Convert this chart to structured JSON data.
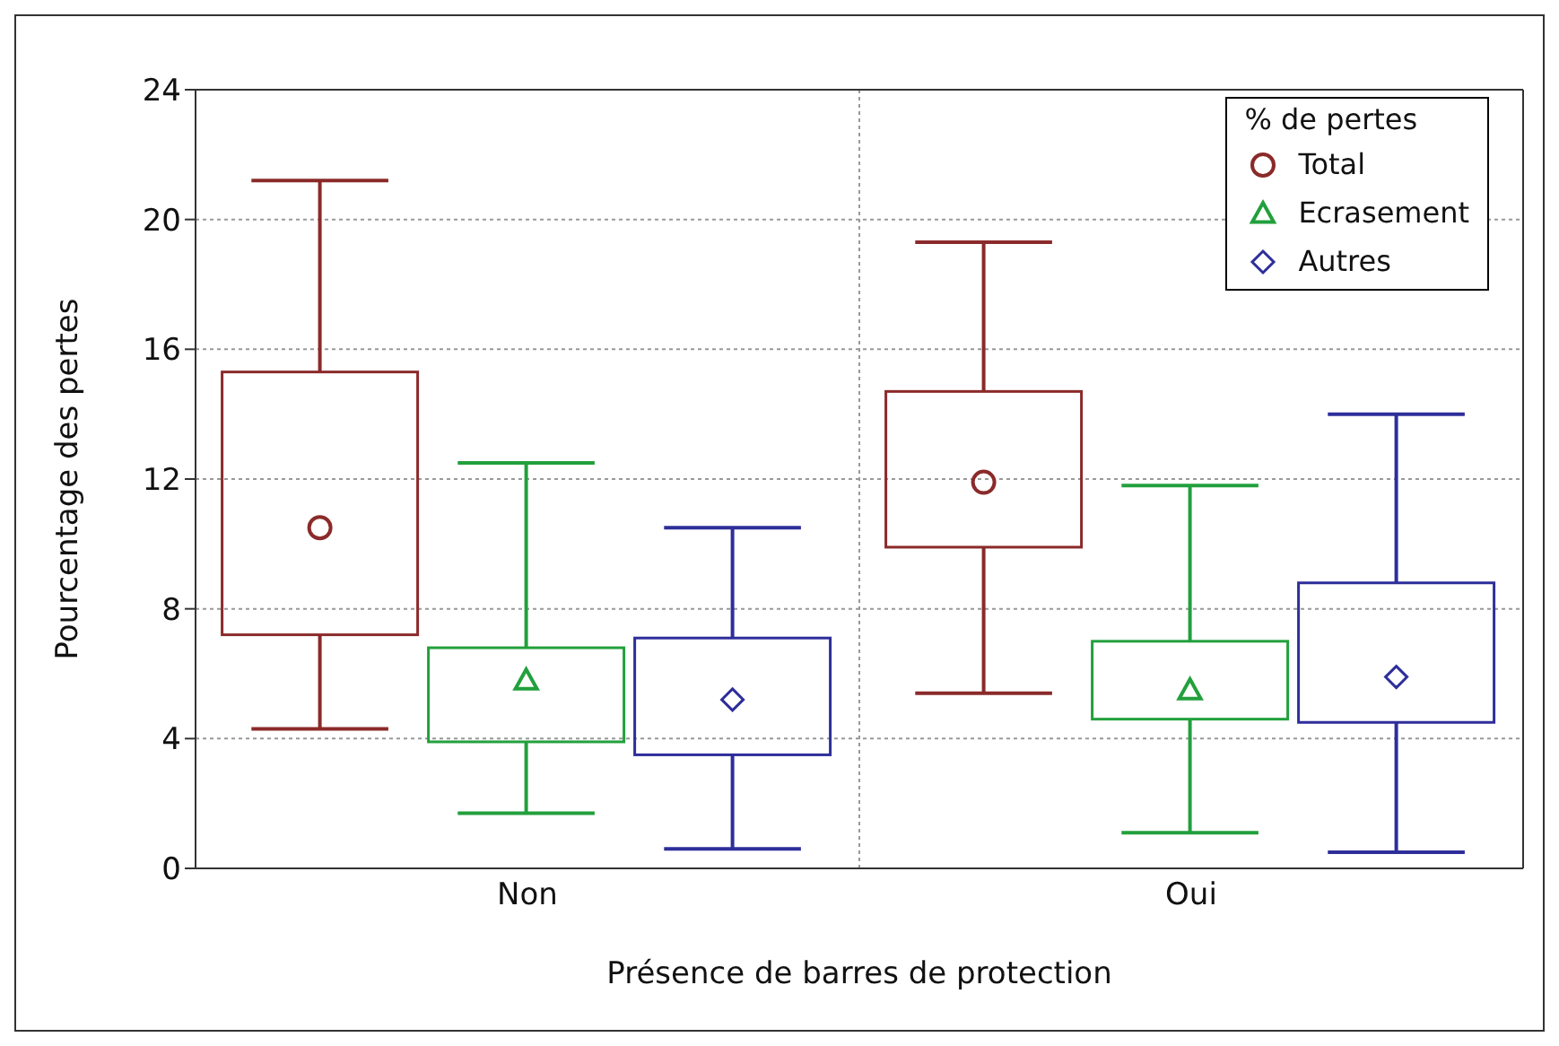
{
  "chart_data": {
    "type": "box",
    "xlabel": "Présence de barres de protection",
    "ylabel": "Pourcentage des pertes",
    "legend_title": "% de pertes",
    "categories": [
      "Non",
      "Oui"
    ],
    "ylim": [
      0,
      24
    ],
    "yticks": [
      0,
      4,
      8,
      12,
      16,
      20,
      24
    ],
    "grid": true,
    "legend": "top right",
    "series": [
      {
        "name": "Total",
        "color": "#8b2a2a",
        "marker": "circle",
        "boxes": [
          {
            "low": 4.3,
            "q1": 7.2,
            "median": 10.5,
            "q3": 15.3,
            "high": 21.2
          },
          {
            "low": 5.4,
            "q1": 9.9,
            "median": 11.9,
            "q3": 14.7,
            "high": 19.3
          }
        ]
      },
      {
        "name": "Ecrasement",
        "color": "#22a03c",
        "marker": "triangle",
        "boxes": [
          {
            "low": 1.7,
            "q1": 3.9,
            "median": 5.8,
            "q3": 6.8,
            "high": 12.5
          },
          {
            "low": 1.1,
            "q1": 4.6,
            "median": 5.5,
            "q3": 7.0,
            "high": 11.8
          }
        ]
      },
      {
        "name": "Autres",
        "color": "#2e2e9a",
        "marker": "diamond",
        "boxes": [
          {
            "low": 0.6,
            "q1": 3.5,
            "median": 5.2,
            "q3": 7.1,
            "high": 10.5
          },
          {
            "low": 0.5,
            "q1": 4.5,
            "median": 5.9,
            "q3": 8.8,
            "high": 14.0
          }
        ]
      }
    ]
  }
}
